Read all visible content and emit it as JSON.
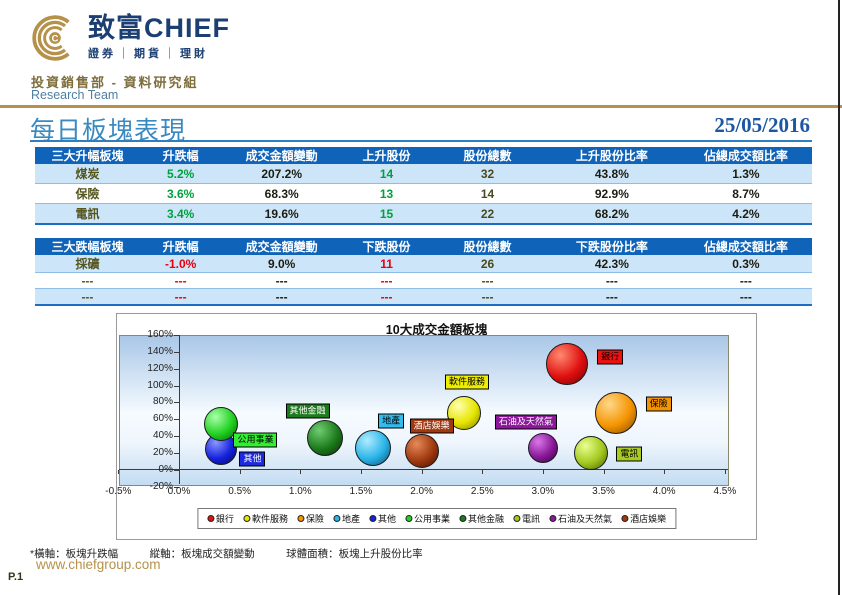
{
  "header": {
    "logo_cn": "致富",
    "logo_en": "CHIEF",
    "logo_icon_letter": "C",
    "tagline": [
      "證券",
      "期貨",
      "理財"
    ],
    "dept_cn": "投資銷售部 - 資料研究組",
    "dept_en": "Research Team"
  },
  "title_bar": {
    "title": "每日板塊表現",
    "date": "25/05/2016"
  },
  "tables": [
    {
      "headers": [
        "三大升幅板塊",
        "升跌幅",
        "成交金額變動",
        "上升股份",
        "股份總數",
        "上升股份比率",
        "佔總成交額比率"
      ],
      "col_styles": [
        "c-name",
        "c-up",
        "c-plain",
        "c-up",
        "c-total",
        "c-plain",
        "c-plain"
      ],
      "rows": [
        [
          "煤炭",
          "5.2%",
          "207.2%",
          "14",
          "32",
          "43.8%",
          "1.3%"
        ],
        [
          "保險",
          "3.6%",
          "68.3%",
          "13",
          "14",
          "92.9%",
          "8.7%"
        ],
        [
          "電訊",
          "3.4%",
          "19.6%",
          "15",
          "22",
          "68.2%",
          "4.2%"
        ]
      ]
    },
    {
      "headers": [
        "三大跌幅板塊",
        "升跌幅",
        "成交金額變動",
        "下跌股份",
        "股份總數",
        "下跌股份比率",
        "佔總成交額比率"
      ],
      "col_styles": [
        "c-name",
        "c-down",
        "c-plain",
        "c-down",
        "c-total",
        "c-plain",
        "c-plain"
      ],
      "rows": [
        [
          "採礦",
          "-1.0%",
          "9.0%",
          "11",
          "26",
          "42.3%",
          "0.3%"
        ],
        [
          "---",
          "---",
          "---",
          "---",
          "---",
          "---",
          "---"
        ],
        [
          "---",
          "---",
          "---",
          "---",
          "---",
          "---",
          "---"
        ]
      ]
    }
  ],
  "chart_data": {
    "type": "scatter",
    "subtype": "bubble",
    "title": "10大成交金額板塊",
    "xlabel": "板塊升跌幅",
    "ylabel": "板塊成交額變動",
    "size_meaning": "板塊上升股份比率",
    "xlim": [
      -0.5,
      4.5
    ],
    "ylim": [
      -20,
      160
    ],
    "grid": false,
    "legend_position": "bottom",
    "x_axis": {
      "values": [
        -0.5,
        0.0,
        0.5,
        1.0,
        1.5,
        2.0,
        2.5,
        3.0,
        3.5,
        4.0,
        4.5
      ],
      "labels": [
        "-0.5%",
        "0.0%",
        "0.5%",
        "1.0%",
        "1.5%",
        "2.0%",
        "2.5%",
        "3.0%",
        "3.5%",
        "4.0%",
        "4.5%"
      ]
    },
    "y_axis": {
      "values": [
        160,
        140,
        120,
        100,
        80,
        60,
        40,
        20,
        0,
        -20
      ],
      "labels": [
        "160%",
        "140%",
        "120%",
        "100%",
        "80%",
        "60%",
        "40%",
        "20%",
        "0%",
        "-20%"
      ]
    },
    "series": [
      {
        "key": "bank",
        "name": "銀行",
        "x": 3.2,
        "y": 126,
        "r": 21,
        "color": "#e01010",
        "light": "#ff8a70",
        "dark": "#6e0000",
        "label": {
          "dx": 43,
          "dy": -7,
          "bg": "#ee1111",
          "fg": "#000000"
        }
      },
      {
        "key": "software",
        "name": "軟件服務",
        "x": 2.35,
        "y": 67,
        "r": 17,
        "color": "#e6e600",
        "light": "#ffffb0",
        "dark": "#7e7e00",
        "label": {
          "dx": 3,
          "dy": -31,
          "bg": "#eeee00",
          "fg": "#000000"
        }
      },
      {
        "key": "insurance",
        "name": "保險",
        "x": 3.6,
        "y": 68,
        "r": 21,
        "color": "#f59400",
        "light": "#ffd88a",
        "dark": "#7e4a00",
        "label": {
          "dx": 43,
          "dy": -9,
          "bg": "#f59400",
          "fg": "#000000"
        }
      },
      {
        "key": "property",
        "name": "地產",
        "x": 1.6,
        "y": 26,
        "r": 18,
        "color": "#2ab4e8",
        "light": "#b0ecff",
        "dark": "#084e74",
        "label": {
          "dx": 18,
          "dy": -27,
          "bg": "#33bbee",
          "fg": "#000000"
        }
      },
      {
        "key": "others",
        "name": "其他",
        "x": 0.35,
        "y": 25,
        "r": 16,
        "color": "#1522dd",
        "light": "#8a96ff",
        "dark": "#000660",
        "label": {
          "dx": 31,
          "dy": 10,
          "bg": "#1c2ae0",
          "fg": "#ffffff"
        }
      },
      {
        "key": "utilities",
        "name": "公用事業",
        "x": 0.35,
        "y": 54,
        "r": 17,
        "color": "#22d122",
        "light": "#aaffaa",
        "dark": "#006600",
        "label": {
          "dx": 34,
          "dy": 16,
          "bg": "#33ee33",
          "fg": "#000000"
        }
      },
      {
        "key": "other-financials",
        "name": "其他金融",
        "x": 1.2,
        "y": 38,
        "r": 18,
        "color": "#1d7a1d",
        "light": "#70cc70",
        "dark": "#053005",
        "label": {
          "dx": -17,
          "dy": -27,
          "bg": "#1d7a1d",
          "fg": "#ffffff"
        }
      },
      {
        "key": "telecom",
        "name": "電訊",
        "x": 3.4,
        "y": 20,
        "r": 17,
        "color": "#a2c81e",
        "light": "#eaff90",
        "dark": "#465f00",
        "label": {
          "dx": 38,
          "dy": 1,
          "bg": "#aacc22",
          "fg": "#000000"
        }
      },
      {
        "key": "oil-gas",
        "name": "石油及天然氣",
        "x": 3.0,
        "y": 26,
        "r": 15,
        "color": "#8a1899",
        "light": "#d878e8",
        "dark": "#330040",
        "label": {
          "dx": -17,
          "dy": -26,
          "bg": "#8a1899",
          "fg": "#ffffff"
        }
      },
      {
        "key": "hotels",
        "name": "酒店娛樂",
        "x": 2.0,
        "y": 22,
        "r": 17,
        "color": "#a03810",
        "light": "#e68a58",
        "dark": "#400e00",
        "label": {
          "dx": 10,
          "dy": -25,
          "bg": "#a03810",
          "fg": "#ffffff"
        }
      }
    ],
    "legend_order": [
      "銀行",
      "軟件服務",
      "保險",
      "地產",
      "其他",
      "公用事業",
      "其他金融",
      "電訊",
      "石油及天然氣",
      "酒店娛樂"
    ]
  },
  "footnote": "*橫軸：板塊升跌幅　　　縱軸：板塊成交額變動　　　球體面積：板塊上升股份比率",
  "footer": {
    "url": "www.chiefgroup.com",
    "page_num": "P.1"
  },
  "colors": {
    "brand_gold": "#b5914a",
    "brand_navy": "#1b3e73",
    "table_header_blue": "#0f63b8",
    "row_light_blue": "#cde5f8",
    "up_green": "#00a03c",
    "down_red": "#e8000d"
  }
}
